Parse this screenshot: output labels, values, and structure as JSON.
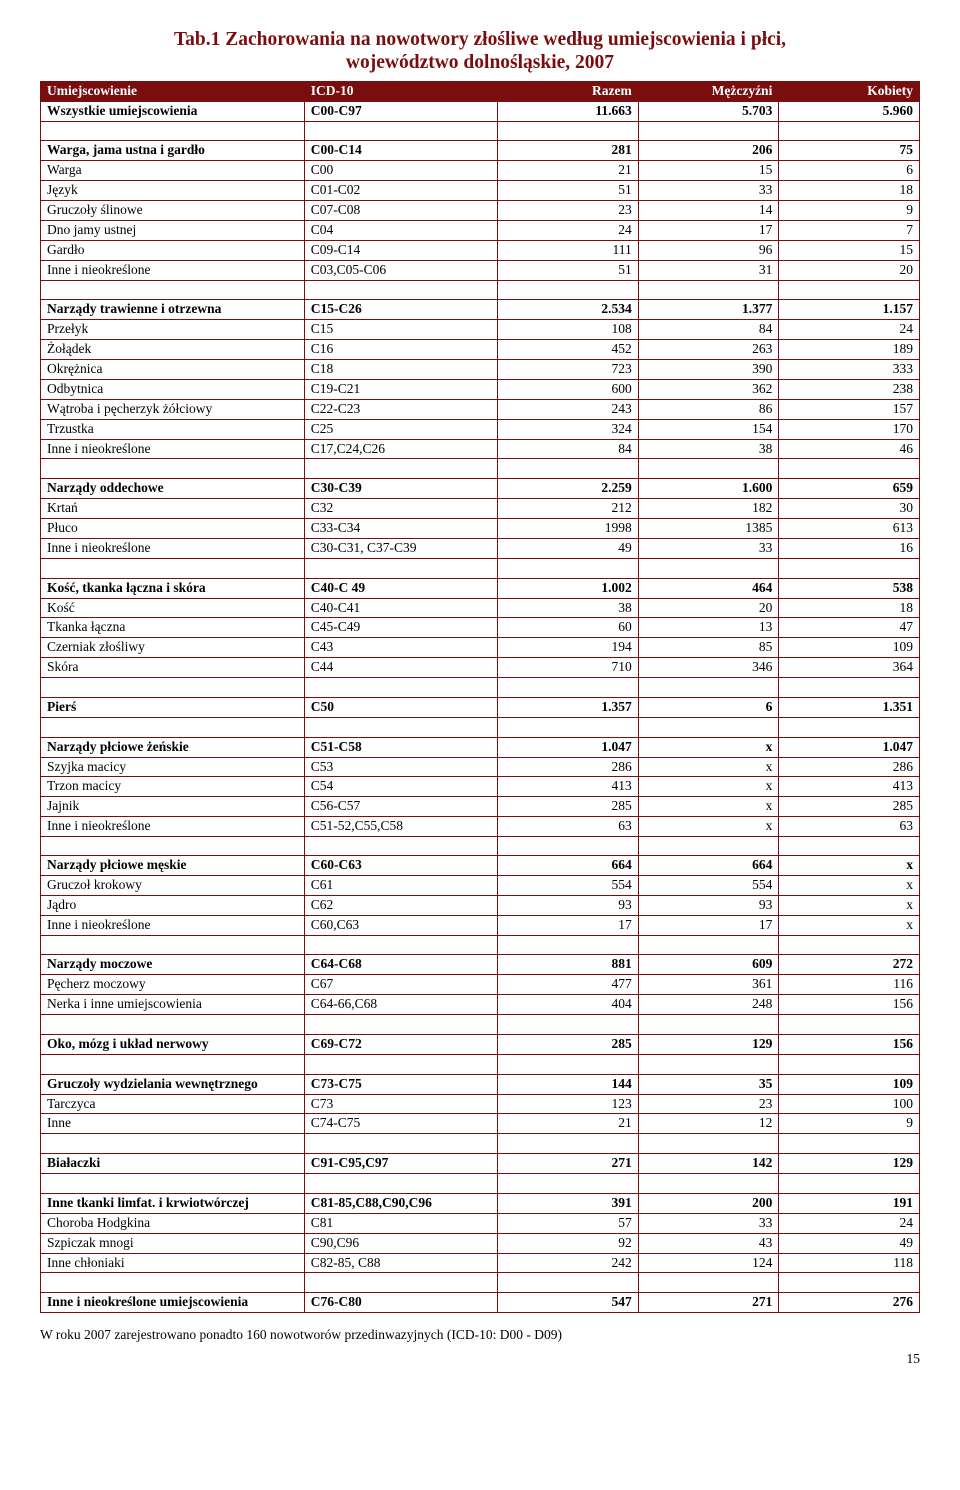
{
  "title_line1": "Tab.1 Zachorowania na nowotwory złośliwe według umiejscowienia i płci,",
  "title_line2": "województwo dolnośląskie, 2007",
  "headers": [
    "Umiejscowienie",
    "ICD-10",
    "Razem",
    "Mężczyźni",
    "Kobiety"
  ],
  "footnote": "W roku 2007 zarejestrowano ponadto 160 nowotworów przedinwazyjnych (ICD-10: D00 - D09)",
  "page_number": "15",
  "rows": [
    {
      "t": "bold",
      "c": [
        "Wszystkie umiejscowienia",
        "C00-C97",
        "11.663",
        "5.703",
        "5.960"
      ]
    },
    {
      "t": "spacer"
    },
    {
      "t": "bold",
      "c": [
        "Warga, jama ustna i gardło",
        "C00-C14",
        "281",
        "206",
        "75"
      ]
    },
    {
      "t": "sub",
      "c": [
        "Warga",
        "C00",
        "21",
        "15",
        "6"
      ]
    },
    {
      "t": "sub",
      "c": [
        "Język",
        "C01-C02",
        "51",
        "33",
        "18"
      ]
    },
    {
      "t": "sub",
      "c": [
        "Gruczoły ślinowe",
        "C07-C08",
        "23",
        "14",
        "9"
      ]
    },
    {
      "t": "sub",
      "c": [
        "Dno jamy ustnej",
        "C04",
        "24",
        "17",
        "7"
      ]
    },
    {
      "t": "sub",
      "c": [
        "Gardło",
        "C09-C14",
        "111",
        "96",
        "15"
      ]
    },
    {
      "t": "sub",
      "c": [
        "Inne i nieokreślone",
        "C03,C05-C06",
        "51",
        "31",
        "20"
      ]
    },
    {
      "t": "spacer"
    },
    {
      "t": "bold",
      "c": [
        "Narządy trawienne i otrzewna",
        "C15-C26",
        "2.534",
        "1.377",
        "1.157"
      ]
    },
    {
      "t": "sub",
      "c": [
        "Przełyk",
        "C15",
        "108",
        "84",
        "24"
      ]
    },
    {
      "t": "sub",
      "c": [
        "Żołądek",
        "C16",
        "452",
        "263",
        "189"
      ]
    },
    {
      "t": "sub",
      "c": [
        "Okrężnica",
        "C18",
        "723",
        "390",
        "333"
      ]
    },
    {
      "t": "sub",
      "c": [
        "Odbytnica",
        "C19-C21",
        "600",
        "362",
        "238"
      ]
    },
    {
      "t": "sub",
      "c": [
        "Wątroba i pęcherzyk żółciowy",
        "C22-C23",
        "243",
        "86",
        "157"
      ]
    },
    {
      "t": "sub",
      "c": [
        "Trzustka",
        "C25",
        "324",
        "154",
        "170"
      ]
    },
    {
      "t": "sub",
      "c": [
        "Inne i nieokreślone",
        "C17,C24,C26",
        "84",
        "38",
        "46"
      ]
    },
    {
      "t": "spacer"
    },
    {
      "t": "bold",
      "c": [
        "Narządy oddechowe",
        "C30-C39",
        "2.259",
        "1.600",
        "659"
      ]
    },
    {
      "t": "sub",
      "c": [
        "Krtań",
        "C32",
        "212",
        "182",
        "30"
      ]
    },
    {
      "t": "sub",
      "c": [
        "Płuco",
        "C33-C34",
        "1998",
        "1385",
        "613"
      ]
    },
    {
      "t": "sub",
      "c": [
        "Inne i nieokreślone",
        "C30-C31, C37-C39",
        "49",
        "33",
        "16"
      ]
    },
    {
      "t": "spacer"
    },
    {
      "t": "bold",
      "c": [
        "Kość, tkanka łączna i skóra",
        "C40-C 49",
        "1.002",
        "464",
        "538"
      ]
    },
    {
      "t": "sub",
      "c": [
        "Kość",
        "C40-C41",
        "38",
        "20",
        "18"
      ]
    },
    {
      "t": "sub",
      "c": [
        "Tkanka łączna",
        "C45-C49",
        "60",
        "13",
        "47"
      ]
    },
    {
      "t": "sub",
      "c": [
        "Czerniak złośliwy",
        "C43",
        "194",
        "85",
        "109"
      ]
    },
    {
      "t": "sub",
      "c": [
        "Skóra",
        "C44",
        "710",
        "346",
        "364"
      ]
    },
    {
      "t": "spacer"
    },
    {
      "t": "bold",
      "c": [
        "Pierś",
        "C50",
        "1.357",
        "6",
        "1.351"
      ]
    },
    {
      "t": "spacer"
    },
    {
      "t": "bold",
      "c": [
        "Narządy płciowe żeńskie",
        "C51-C58",
        "1.047",
        "x",
        "1.047"
      ]
    },
    {
      "t": "sub",
      "c": [
        "Szyjka macicy",
        "C53",
        "286",
        "x",
        "286"
      ]
    },
    {
      "t": "sub",
      "c": [
        "Trzon macicy",
        "C54",
        "413",
        "x",
        "413"
      ]
    },
    {
      "t": "sub",
      "c": [
        "Jajnik",
        "C56-C57",
        "285",
        "x",
        "285"
      ]
    },
    {
      "t": "sub",
      "c": [
        "Inne i nieokreślone",
        "C51-52,C55,C58",
        "63",
        "x",
        "63"
      ]
    },
    {
      "t": "bold",
      "c": [
        "",
        "",
        "",
        "",
        ""
      ]
    },
    {
      "t": "bold",
      "c": [
        "Narządy płciowe męskie",
        "C60-C63",
        "664",
        "664",
        "x"
      ]
    },
    {
      "t": "sub",
      "c": [
        "Gruczoł krokowy",
        "C61",
        "554",
        "554",
        "x"
      ]
    },
    {
      "t": "sub",
      "c": [
        "Jądro",
        "C62",
        "93",
        "93",
        "x"
      ]
    },
    {
      "t": "sub",
      "c": [
        "Inne i nieokreślone",
        "C60,C63",
        "17",
        "17",
        "x"
      ]
    },
    {
      "t": "spacer"
    },
    {
      "t": "bold",
      "c": [
        "Narządy moczowe",
        "C64-C68",
        "881",
        "609",
        "272"
      ]
    },
    {
      "t": "sub",
      "c": [
        "Pęcherz  moczowy",
        "C67",
        "477",
        "361",
        "116"
      ]
    },
    {
      "t": "sub",
      "c": [
        "Nerka i inne umiejscowienia",
        "C64-66,C68",
        "404",
        "248",
        "156"
      ]
    },
    {
      "t": "spacer"
    },
    {
      "t": "bold",
      "c": [
        "Oko, mózg i układ nerwowy",
        "C69-C72",
        "285",
        "129",
        "156"
      ]
    },
    {
      "t": "spacer"
    },
    {
      "t": "bold",
      "c": [
        "Gruczoły wydzielania wewnętrznego",
        "C73-C75",
        "144",
        "35",
        "109"
      ]
    },
    {
      "t": "sub",
      "c": [
        "Tarczyca",
        "C73",
        "123",
        "23",
        "100"
      ]
    },
    {
      "t": "sub",
      "c": [
        "Inne",
        "C74-C75",
        "21",
        "12",
        "9"
      ]
    },
    {
      "t": "spacer"
    },
    {
      "t": "bold",
      "c": [
        "Białaczki",
        "C91-C95,C97",
        "271",
        "142",
        "129"
      ]
    },
    {
      "t": "spacer"
    },
    {
      "t": "bold",
      "c": [
        "Inne tkanki limfat. i krwiotwórczej",
        "C81-85,C88,C90,C96",
        "391",
        "200",
        "191"
      ]
    },
    {
      "t": "sub",
      "c": [
        "Choroba Hodgkina",
        "C81",
        "57",
        "33",
        "24"
      ]
    },
    {
      "t": "sub",
      "c": [
        "Szpiczak mnogi",
        "C90,C96",
        "92",
        "43",
        "49"
      ]
    },
    {
      "t": "sub",
      "c": [
        "Inne chłoniaki",
        "C82-85, C88",
        "242",
        "124",
        "118"
      ]
    },
    {
      "t": "spacer"
    },
    {
      "t": "bold",
      "c": [
        "Inne i nieokreślone umiejscowienia",
        "C76-C80",
        "547",
        "271",
        "276"
      ]
    }
  ]
}
